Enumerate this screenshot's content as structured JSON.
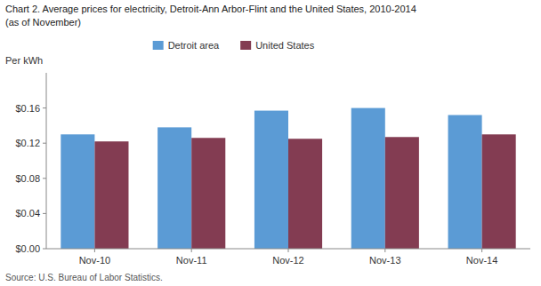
{
  "chart_data": {
    "type": "bar",
    "title": "Chart 2. Average prices for electricity, Detroit-Ann Arbor-Flint and the United States, 2010-2014",
    "subtitle": "(as of November)",
    "y_label": "Per kWh",
    "annotations": [
      "Source: U.S. Bureau of Labor Statistics."
    ],
    "categories": [
      "Nov-10",
      "Nov-11",
      "Nov-12",
      "Nov-13",
      "Nov-14"
    ],
    "series": [
      {
        "name": "Detroit area",
        "color": "#5B9BD5",
        "values": [
          0.13,
          0.138,
          0.157,
          0.16,
          0.152
        ]
      },
      {
        "name": "United States",
        "color": "#833C52",
        "values": [
          0.122,
          0.126,
          0.125,
          0.127,
          0.13
        ]
      }
    ],
    "ylim": [
      0,
      0.2
    ],
    "yticks": [
      {
        "value": 0.0,
        "label": "$0.00"
      },
      {
        "value": 0.04,
        "label": "$0.04"
      },
      {
        "value": 0.08,
        "label": "$0.08"
      },
      {
        "value": 0.12,
        "label": "$0.12"
      },
      {
        "value": 0.16,
        "label": "$0.16"
      }
    ],
    "grid": false,
    "legend": "top"
  }
}
